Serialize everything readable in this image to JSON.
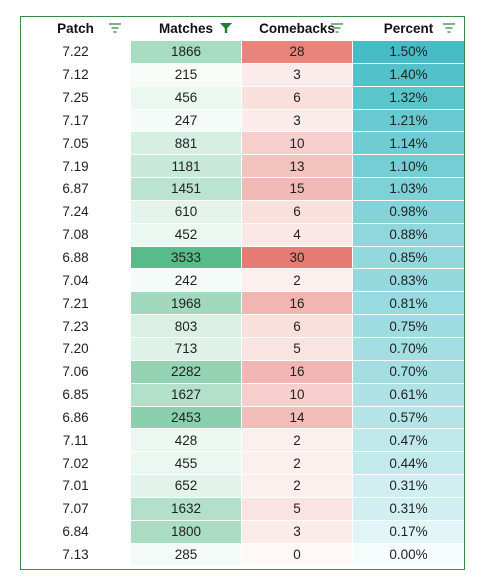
{
  "headers": {
    "patch": "Patch",
    "matches": "Matches",
    "comebacks": "Comebacks",
    "percent": "Percent"
  },
  "filters": {
    "patch": "filter-icon",
    "matches": "filter-active-icon",
    "comebacks": "filter-icon",
    "percent": "filter-icon"
  },
  "colors": {
    "border": "#3a8a4a",
    "filter_active": "#1e7e34",
    "filter_inactive": "#5aa06a",
    "matches_scale_low": "#ffffff",
    "matches_scale_high": "#57bb8a",
    "comebacks_scale_low": "#ffffff",
    "comebacks_scale_high": "#e67c73",
    "percent_scale_low": "#ffffff",
    "percent_scale_high": "#46bdc6"
  },
  "rows": [
    {
      "patch": "7.22",
      "matches": "1866",
      "comebacks": "28",
      "percent": "1.50%"
    },
    {
      "patch": "7.12",
      "matches": "215",
      "comebacks": "3",
      "percent": "1.40%"
    },
    {
      "patch": "7.25",
      "matches": "456",
      "comebacks": "6",
      "percent": "1.32%"
    },
    {
      "patch": "7.17",
      "matches": "247",
      "comebacks": "3",
      "percent": "1.21%"
    },
    {
      "patch": "7.05",
      "matches": "881",
      "comebacks": "10",
      "percent": "1.14%"
    },
    {
      "patch": "7.19",
      "matches": "1181",
      "comebacks": "13",
      "percent": "1.10%"
    },
    {
      "patch": "6.87",
      "matches": "1451",
      "comebacks": "15",
      "percent": "1.03%"
    },
    {
      "patch": "7.24",
      "matches": "610",
      "comebacks": "6",
      "percent": "0.98%"
    },
    {
      "patch": "7.08",
      "matches": "452",
      "comebacks": "4",
      "percent": "0.88%"
    },
    {
      "patch": "6.88",
      "matches": "3533",
      "comebacks": "30",
      "percent": "0.85%"
    },
    {
      "patch": "7.04",
      "matches": "242",
      "comebacks": "2",
      "percent": "0.83%"
    },
    {
      "patch": "7.21",
      "matches": "1968",
      "comebacks": "16",
      "percent": "0.81%"
    },
    {
      "patch": "7.23",
      "matches": "803",
      "comebacks": "6",
      "percent": "0.75%"
    },
    {
      "patch": "7.20",
      "matches": "713",
      "comebacks": "5",
      "percent": "0.70%"
    },
    {
      "patch": "7.06",
      "matches": "2282",
      "comebacks": "16",
      "percent": "0.70%"
    },
    {
      "patch": "6.85",
      "matches": "1627",
      "comebacks": "10",
      "percent": "0.61%"
    },
    {
      "patch": "6.86",
      "matches": "2453",
      "comebacks": "14",
      "percent": "0.57%"
    },
    {
      "patch": "7.11",
      "matches": "428",
      "comebacks": "2",
      "percent": "0.47%"
    },
    {
      "patch": "7.02",
      "matches": "455",
      "comebacks": "2",
      "percent": "0.44%"
    },
    {
      "patch": "7.01",
      "matches": "652",
      "comebacks": "2",
      "percent": "0.31%"
    },
    {
      "patch": "7.07",
      "matches": "1632",
      "comebacks": "5",
      "percent": "0.31%"
    },
    {
      "patch": "6.84",
      "matches": "1800",
      "comebacks": "3",
      "percent": "0.17%"
    },
    {
      "patch": "7.13",
      "matches": "285",
      "comebacks": "0",
      "percent": "0.00%"
    }
  ]
}
